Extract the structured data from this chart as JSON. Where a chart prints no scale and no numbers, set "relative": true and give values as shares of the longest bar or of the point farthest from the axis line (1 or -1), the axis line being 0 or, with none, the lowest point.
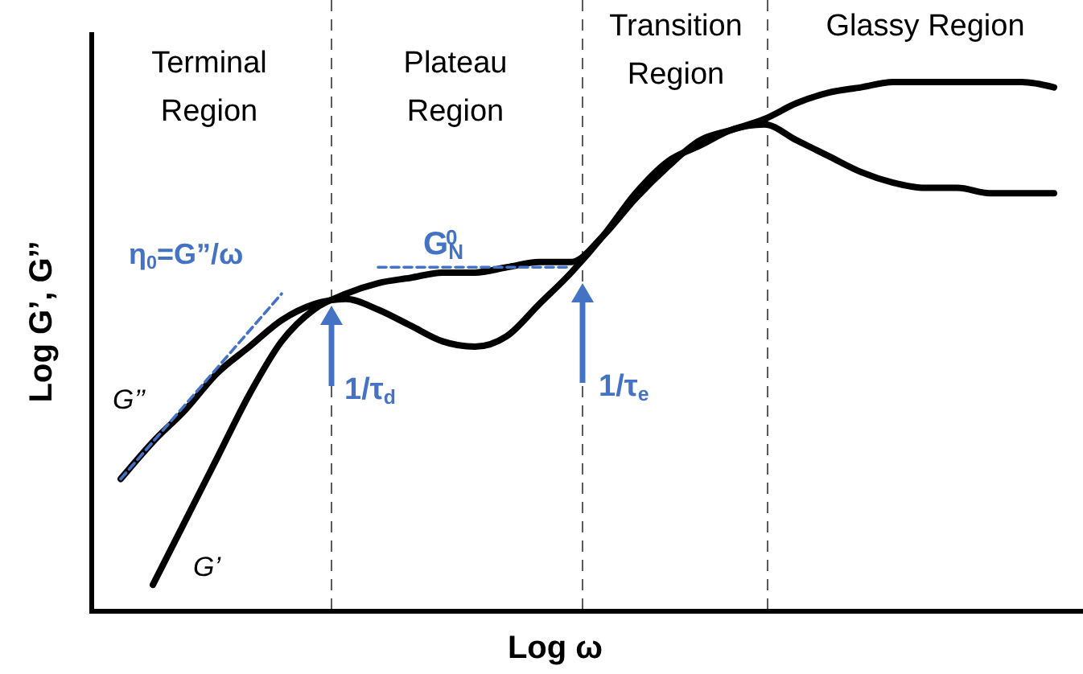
{
  "chart_data": {
    "type": "line",
    "relative": true,
    "xlabel": "Log ω",
    "ylabel": "Log G’, G’’",
    "categories": [
      null,
      null,
      null,
      null,
      null,
      null,
      null,
      null,
      null,
      null,
      null,
      null,
      null,
      null,
      null,
      null,
      null,
      null,
      null,
      null,
      null,
      null,
      null,
      null,
      null,
      null,
      null,
      null,
      null,
      null
    ],
    "series": [
      {
        "name": "G’’",
        "color": "#000000",
        "values": [
          0.25,
          0.32,
          0.38,
          0.45,
          0.5,
          0.55,
          0.58,
          0.59,
          0.57,
          0.54,
          0.51,
          0.5,
          0.52,
          0.58,
          0.64,
          0.71,
          0.79,
          0.85,
          0.88,
          0.91,
          0.92,
          0.89,
          0.86,
          0.83,
          0.81,
          0.8,
          0.8,
          0.79,
          0.79,
          0.79
        ]
      },
      {
        "name": "G’",
        "color": "#000000",
        "values": [
          null,
          0.05,
          0.17,
          0.29,
          0.41,
          0.51,
          0.57,
          0.6,
          0.62,
          0.63,
          0.64,
          0.64,
          0.65,
          0.66,
          0.66,
          0.71,
          0.78,
          0.84,
          0.89,
          0.91,
          0.93,
          0.96,
          0.98,
          0.99,
          1.0,
          1.0,
          1.0,
          1.0,
          1.0,
          0.99
        ]
      },
      {
        "color": "#4472c4",
        "line_style": "dashed",
        "values": [
          0.25,
          0.32,
          0.39,
          0.46,
          0.53,
          0.6,
          null,
          null,
          null,
          null,
          null,
          null,
          null,
          null,
          null,
          null,
          null,
          null,
          null,
          null,
          null,
          null,
          null,
          null,
          null,
          null,
          null,
          null,
          null,
          null
        ]
      },
      {
        "color": "#4472c4",
        "line_style": "dashed",
        "values": [
          null,
          null,
          null,
          null,
          null,
          null,
          null,
          null,
          0.65,
          0.65,
          0.65,
          0.65,
          0.65,
          0.65,
          0.65,
          null,
          null,
          null,
          null,
          null,
          null,
          null,
          null,
          null,
          null,
          null,
          null,
          null,
          null,
          null
        ]
      }
    ],
    "annotations": [
      "Terminal Region",
      "Plateau Region",
      "Transition Region",
      "Glassy Region",
      "η$_{0}$=G”/ω",
      "G$_{N}$$^{0}$",
      "1/τ$_{d}$",
      "1/τ$_{e}$"
    ]
  }
}
